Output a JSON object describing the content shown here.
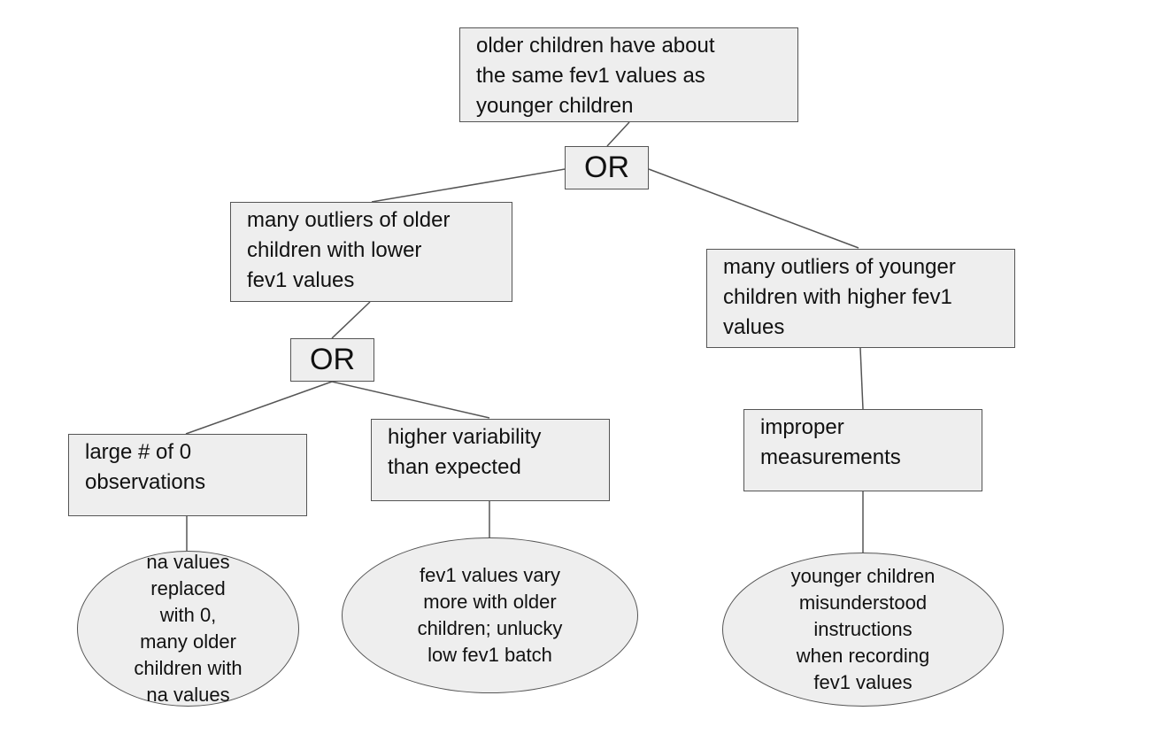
{
  "nodes": {
    "root": "older children have about\nthe same fev1 values as\nyounger children",
    "or_top": "OR",
    "left_branch": "many outliers of older\nchildren with lower\nfev1 values",
    "right_branch": "many outliers of younger\nchildren with higher fev1\nvalues",
    "or_left": "OR",
    "zero_obs": "large # of 0\nobservations",
    "variability": "higher variability\nthan expected",
    "improper": "improper\nmeasurements",
    "cause_na": "na values\nreplaced\nwith 0,\nmany older\nchildren with\nna values",
    "cause_batch": "fev1 values vary\nmore with older\nchildren; unlucky\nlow fev1 batch",
    "cause_instructions": "younger children\nmisunderstood\ninstructions\nwhen recording\nfev1 values"
  }
}
